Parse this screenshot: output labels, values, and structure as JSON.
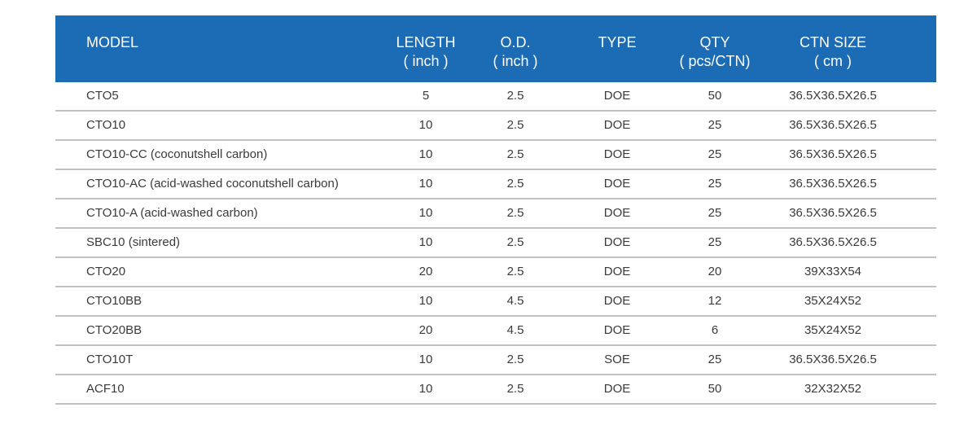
{
  "header": {
    "model": "MODEL",
    "length": "LENGTH",
    "length_unit": "( inch )",
    "od": "O.D.",
    "od_unit": "( inch )",
    "type": "TYPE",
    "qty": "QTY",
    "qty_unit": "( pcs/CTN)",
    "ctn": "CTN SIZE",
    "ctn_unit": "( cm )"
  },
  "colors": {
    "header_bg": "#1b6bb5",
    "header_text": "#ffffff",
    "row_border": "#c2c2c2",
    "body_text": "#3a3a3a"
  },
  "rows": [
    {
      "model": "CTO5",
      "length": "5",
      "od": "2.5",
      "type": "DOE",
      "qty": "50",
      "ctn": "36.5X36.5X26.5"
    },
    {
      "model": "CTO10",
      "length": "10",
      "od": "2.5",
      "type": "DOE",
      "qty": "25",
      "ctn": "36.5X36.5X26.5"
    },
    {
      "model": "CTO10-CC (coconutshell carbon)",
      "length": "10",
      "od": "2.5",
      "type": "DOE",
      "qty": "25",
      "ctn": "36.5X36.5X26.5"
    },
    {
      "model": "CTO10-AC (acid-washed coconutshell carbon)",
      "length": "10",
      "od": "2.5",
      "type": "DOE",
      "qty": "25",
      "ctn": "36.5X36.5X26.5"
    },
    {
      "model": "CTO10-A (acid-washed carbon)",
      "length": "10",
      "od": "2.5",
      "type": "DOE",
      "qty": "25",
      "ctn": "36.5X36.5X26.5"
    },
    {
      "model": "SBC10 (sintered)",
      "length": "10",
      "od": "2.5",
      "type": "DOE",
      "qty": "25",
      "ctn": "36.5X36.5X26.5"
    },
    {
      "model": "CTO20",
      "length": "20",
      "od": "2.5",
      "type": "DOE",
      "qty": "20",
      "ctn": "39X33X54"
    },
    {
      "model": "CTO10BB",
      "length": "10",
      "od": "4.5",
      "type": "DOE",
      "qty": "12",
      "ctn": "35X24X52"
    },
    {
      "model": "CTO20BB",
      "length": "20",
      "od": "4.5",
      "type": "DOE",
      "qty": "6",
      "ctn": "35X24X52"
    },
    {
      "model": "CTO10T",
      "length": "10",
      "od": "2.5",
      "type": "SOE",
      "qty": "25",
      "ctn": "36.5X36.5X26.5"
    },
    {
      "model": "ACF10",
      "length": "10",
      "od": "2.5",
      "type": "DOE",
      "qty": "50",
      "ctn": "32X32X52"
    }
  ]
}
